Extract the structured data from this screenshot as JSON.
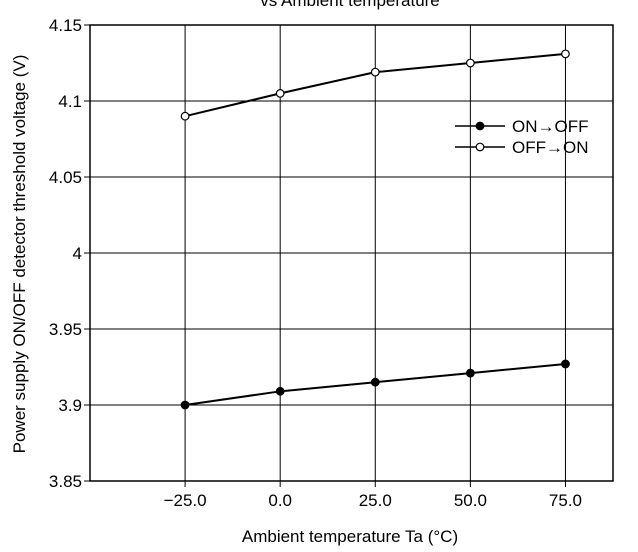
{
  "chart_data": {
    "type": "line",
    "title": "vs Ambient temperature",
    "xlabel": "Ambient temperature Ta (°C)",
    "ylabel": "Power supply ON/OFF detector threshold voltage (V)",
    "x": [
      -25,
      0,
      25,
      50,
      75
    ],
    "x_tick_labels": [
      "−25.0",
      "0.0",
      "25.0",
      "50.0",
      "75.0"
    ],
    "y_ticks": [
      3.85,
      3.9,
      3.95,
      4,
      4.05,
      4.1,
      4.15
    ],
    "y_tick_labels": [
      "3.85",
      "3.9",
      "3.95",
      "4",
      "4.05",
      "4.1",
      "4.15"
    ],
    "xlim": [
      -50,
      87.5
    ],
    "ylim": [
      3.85,
      4.15
    ],
    "grid": true,
    "legend_position": "top-right",
    "series": [
      {
        "name": "ON→OFF",
        "marker": "filled-circle",
        "values": [
          3.9,
          3.909,
          3.915,
          3.921,
          3.927
        ]
      },
      {
        "name": "OFF→ON",
        "marker": "open-circle",
        "values": [
          4.09,
          4.105,
          4.119,
          4.125,
          4.131
        ]
      }
    ]
  }
}
